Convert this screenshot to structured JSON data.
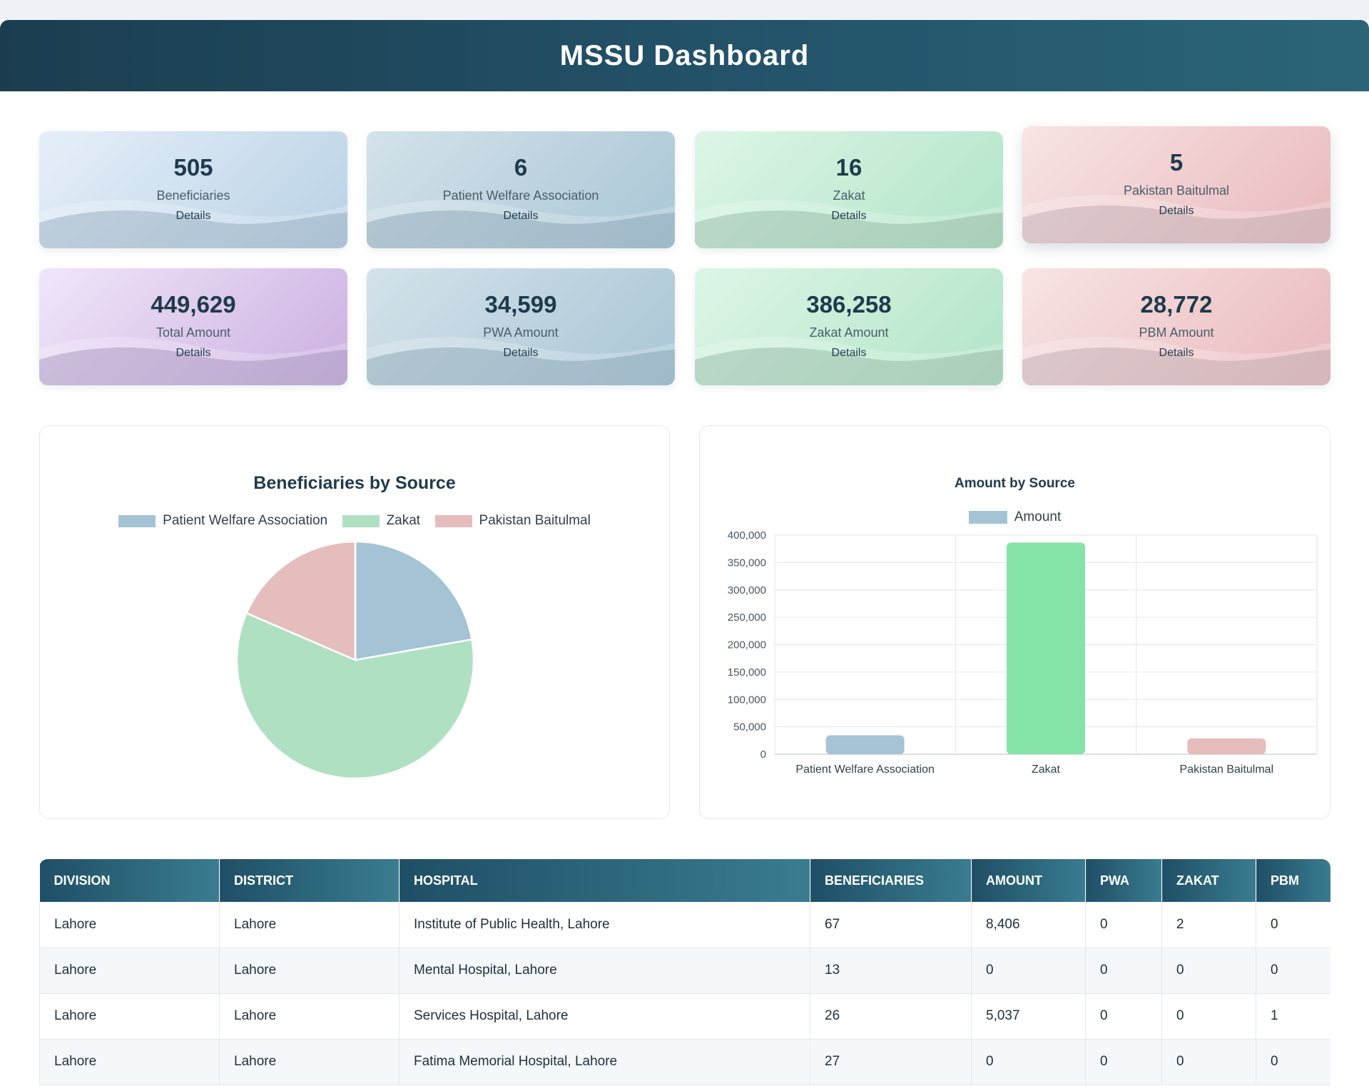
{
  "header": {
    "title": "MSSU Dashboard"
  },
  "cards": [
    {
      "value": "505",
      "label": "Beneficiaries",
      "details": "Details"
    },
    {
      "value": "6",
      "label": "Patient Welfare Association",
      "details": "Details"
    },
    {
      "value": "16",
      "label": "Zakat",
      "details": "Details"
    },
    {
      "value": "5",
      "label": "Pakistan Baitulmal",
      "details": "Details"
    },
    {
      "value": "449,629",
      "label": "Total Amount",
      "details": "Details"
    },
    {
      "value": "34,599",
      "label": "PWA Amount",
      "details": "Details"
    },
    {
      "value": "386,258",
      "label": "Zakat Amount",
      "details": "Details"
    },
    {
      "value": "28,772",
      "label": "PBM Amount",
      "details": "Details"
    }
  ],
  "chart_data": [
    {
      "type": "pie",
      "title": "Beneficiaries by Source",
      "categories": [
        "Patient Welfare Association",
        "Zakat",
        "Pakistan Baitulmal"
      ],
      "values": [
        6,
        16,
        5
      ],
      "colors": [
        "#a4c3d4",
        "#b0e0c2",
        "#e6bdbd"
      ]
    },
    {
      "type": "bar",
      "title": "Amount by Source",
      "legend": "Amount",
      "categories": [
        "Patient Welfare Association",
        "Zakat",
        "Pakistan Baitulmal"
      ],
      "values": [
        34599,
        386258,
        28772
      ],
      "ylim": [
        0,
        400000
      ],
      "yticks": [
        "0",
        "50,000",
        "100,000",
        "150,000",
        "200,000",
        "250,000",
        "300,000",
        "350,000",
        "400,000"
      ],
      "colors": [
        "#a4c3d4",
        "#b0e0c2",
        "#e6bdbd"
      ],
      "hover_color": "#86e3a8"
    }
  ],
  "table": {
    "headers": [
      "DIVISION",
      "DISTRICT",
      "HOSPITAL",
      "BENEFICIARIES",
      "AMOUNT",
      "PWA",
      "ZAKAT",
      "PBM"
    ],
    "rows": [
      [
        "Lahore",
        "Lahore",
        "Institute of Public Health, Lahore",
        "67",
        "8,406",
        "0",
        "2",
        "0"
      ],
      [
        "Lahore",
        "Lahore",
        "Mental Hospital, Lahore",
        "13",
        "0",
        "0",
        "0",
        "0"
      ],
      [
        "Lahore",
        "Lahore",
        "Services Hospital, Lahore",
        "26",
        "5,037",
        "0",
        "0",
        "1"
      ],
      [
        "Lahore",
        "Lahore",
        "Fatima Memorial Hospital, Lahore",
        "27",
        "0",
        "0",
        "0",
        "0"
      ]
    ]
  }
}
